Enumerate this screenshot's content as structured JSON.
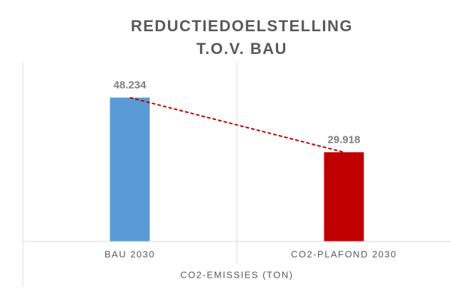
{
  "chart_data": {
    "type": "bar",
    "title": [
      "REDUCTIEDOELSTELLING",
      "T.O.V. BAU"
    ],
    "x_label": "CO2-EMISSIES (TON)",
    "categories": [
      "BAU 2030",
      "CO2-PLAFOND 2030"
    ],
    "values": [
      48234,
      29918
    ],
    "value_labels": [
      "48.234",
      "29.918"
    ],
    "colors": [
      "#5b9bd5",
      "#c00000"
    ],
    "ylim": [
      0,
      60000
    ],
    "trendline": true,
    "trendline_color": "#c00000"
  }
}
